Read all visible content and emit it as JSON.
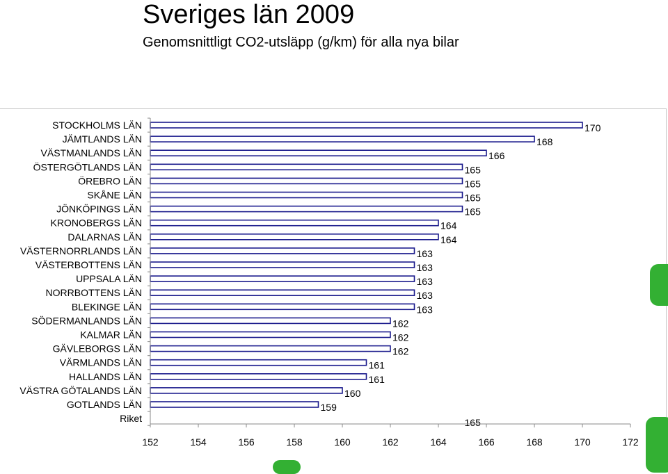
{
  "page": {
    "title": "Sveriges län 2009",
    "subtitle": "Genomsnittligt CO2-utsläpp (g/km) för alla nya bilar"
  },
  "colors": {
    "bar_fill": "#ffffff",
    "bar_stroke": "#1a1a8c",
    "decoration": "#33b033"
  },
  "chart_data": {
    "type": "bar",
    "orientation": "horizontal",
    "title": "Sveriges län 2009",
    "subtitle": "Genomsnittligt CO2-utsläpp (g/km) för alla nya bilar",
    "categories": [
      "STOCKHOLMS LÄN",
      "JÄMTLANDS LÄN",
      "VÄSTMANLANDS LÄN",
      "ÖSTERGÖTLANDS LÄN",
      "ÖREBRO LÄN",
      "SKÅNE LÄN",
      "JÖNKÖPINGS LÄN",
      "KRONOBERGS LÄN",
      "DALARNAS LÄN",
      "VÄSTERNORRLANDS LÄN",
      "VÄSTERBOTTENS LÄN",
      "UPPSALA LÄN",
      "NORRBOTTENS LÄN",
      "BLEKINGE LÄN",
      "SÖDERMANLANDS LÄN",
      "KALMAR LÄN",
      "GÄVLEBORGS LÄN",
      "VÄRMLANDS LÄN",
      "HALLANDS LÄN",
      "VÄSTRA GÖTALANDS LÄN",
      "GOTLANDS LÄN",
      "Riket"
    ],
    "values": [
      170,
      168,
      166,
      165,
      165,
      165,
      165,
      164,
      164,
      163,
      163,
      163,
      163,
      163,
      162,
      162,
      162,
      161,
      161,
      160,
      159,
      165
    ],
    "data_labels": [
      "170",
      "168",
      "166",
      "165",
      "165",
      "165",
      "165",
      "164",
      "164",
      "163",
      "163",
      "163",
      "163",
      "163",
      "162",
      "162",
      "162",
      "161",
      "161",
      "160",
      "159",
      "165"
    ],
    "bar_visible": [
      true,
      true,
      true,
      true,
      true,
      true,
      true,
      true,
      true,
      true,
      true,
      true,
      true,
      true,
      true,
      true,
      true,
      true,
      true,
      true,
      true,
      false
    ],
    "xlim": [
      152,
      172
    ],
    "xticks": [
      152,
      154,
      156,
      158,
      160,
      162,
      164,
      166,
      168,
      170,
      172
    ],
    "xtick_labels": [
      "152",
      "154",
      "156",
      "158",
      "160",
      "162",
      "164",
      "166",
      "168",
      "170",
      "172"
    ],
    "xlabel": "",
    "ylabel": "",
    "grid": false,
    "legend": "none"
  }
}
